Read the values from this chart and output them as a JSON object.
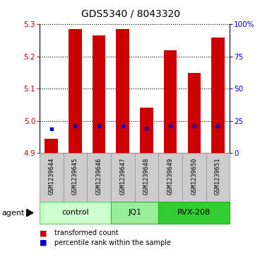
{
  "title": "GDS5340 / 8043320",
  "samples": [
    "GSM1239644",
    "GSM1239645",
    "GSM1239646",
    "GSM1239647",
    "GSM1239648",
    "GSM1239649",
    "GSM1239650",
    "GSM1239651"
  ],
  "bar_values": [
    4.945,
    5.285,
    5.265,
    5.285,
    5.04,
    5.22,
    5.15,
    5.26
  ],
  "bar_base": 4.9,
  "percentile_values": [
    4.976,
    4.984,
    4.983,
    4.984,
    4.977,
    4.984,
    4.983,
    4.984
  ],
  "groups": [
    {
      "label": "control",
      "start": 0,
      "end": 3,
      "color": "#ccffcc",
      "edge": "#66cc66"
    },
    {
      "label": "JQ1",
      "start": 3,
      "end": 5,
      "color": "#99ee99",
      "edge": "#44aa44"
    },
    {
      "label": "RVX-208",
      "start": 5,
      "end": 8,
      "color": "#33cc33",
      "edge": "#22aa22"
    }
  ],
  "ylim": [
    4.9,
    5.3
  ],
  "yticks": [
    4.9,
    5.0,
    5.1,
    5.2,
    5.3
  ],
  "right_yticks": [
    0,
    25,
    50,
    75,
    100
  ],
  "right_ylim": [
    0,
    100
  ],
  "bar_color": "#cc0000",
  "percentile_color": "#0000cc",
  "bar_width": 0.55,
  "agent_label": "agent",
  "legend_items": [
    "transformed count",
    "percentile rank within the sample"
  ],
  "sample_bg": "#cccccc",
  "sample_edge": "#999999"
}
